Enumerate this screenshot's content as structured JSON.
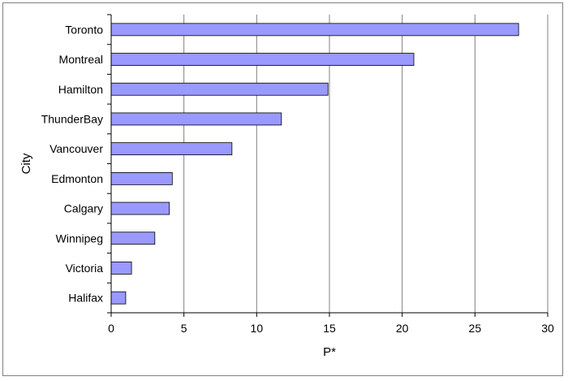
{
  "chart_data": {
    "type": "bar",
    "orientation": "horizontal",
    "title": "",
    "xlabel": "P*",
    "ylabel": "City",
    "categories": [
      "Toronto",
      "Montreal",
      "Hamilton",
      "ThunderBay",
      "Vancouver",
      "Edmonton",
      "Calgary",
      "Winnipeg",
      "Victoria",
      "Halifax"
    ],
    "values": [
      28.0,
      20.8,
      14.9,
      11.7,
      8.3,
      4.2,
      4.0,
      3.0,
      1.4,
      1.0
    ],
    "xlim": [
      0,
      30
    ],
    "xticks": [
      0,
      5,
      10,
      15,
      20,
      25,
      30
    ],
    "grid": true,
    "legend": "none",
    "colors": {
      "bar_fill": "#9999ff",
      "bar_stroke": "#000000",
      "grid": "#808080",
      "frame": "#808080"
    }
  }
}
